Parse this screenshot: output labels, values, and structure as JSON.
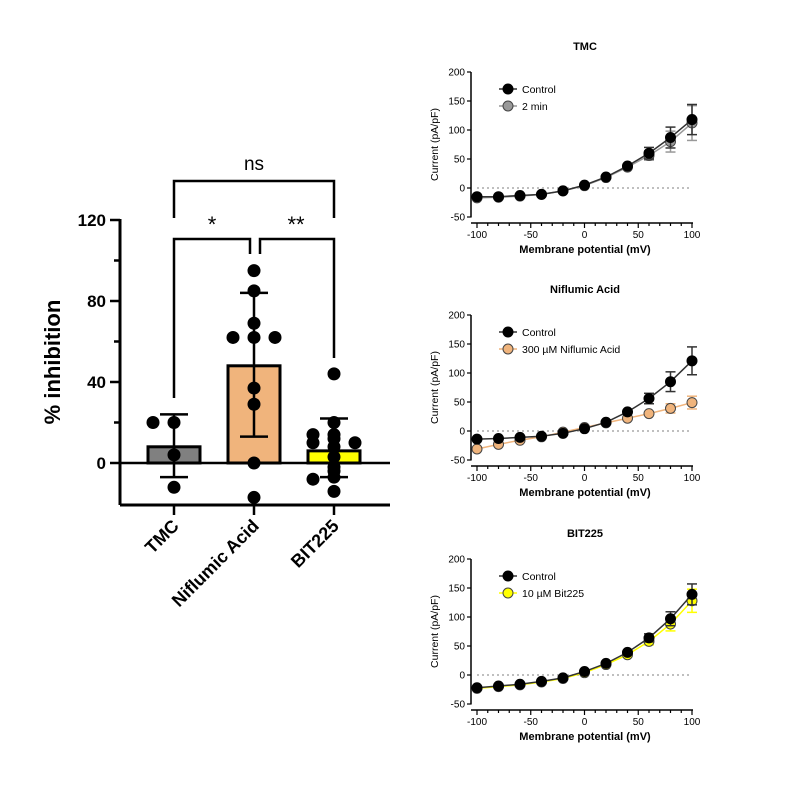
{
  "chart_data": [
    {
      "type": "bar",
      "title": "",
      "ylabel": "% inhibition",
      "xlabel": "",
      "ylim": [
        -20,
        120
      ],
      "yticks": [
        "0",
        "40",
        "80",
        "120"
      ],
      "categories": [
        "TMC",
        "Niflumic Acid",
        "BIT225"
      ],
      "colors": [
        "#808080",
        "#f0b47c",
        "#ffff00"
      ],
      "values": [
        8,
        48,
        6
      ],
      "error": [
        [
          -7,
          24
        ],
        [
          13,
          84
        ],
        [
          -7,
          22
        ]
      ],
      "points": [
        [
          20,
          20,
          4,
          -12
        ],
        [
          95,
          85,
          69,
          62,
          62,
          62,
          37,
          29,
          0,
          -17
        ],
        [
          44,
          20,
          14,
          14,
          12,
          10,
          10,
          8,
          3,
          -2,
          -4,
          -7,
          -8,
          -14
        ]
      ],
      "annotations": [
        {
          "label": "ns",
          "between": [
            "TMC",
            "BIT225"
          ]
        },
        {
          "label": "*",
          "between": [
            "TMC",
            "Niflumic Acid"
          ]
        },
        {
          "label": "**",
          "between": [
            "Niflumic Acid",
            "BIT225"
          ]
        }
      ]
    },
    {
      "type": "line",
      "title": "TMC",
      "xlabel": "Membrane potential (mV)",
      "ylabel": "Current (pA/pF)",
      "xlim": [
        -100,
        100
      ],
      "ylim": [
        -50,
        200
      ],
      "xticks": [
        "-100",
        "-50",
        "0",
        "50",
        "100"
      ],
      "yticks": [
        "-50",
        "0",
        "50",
        "100",
        "150",
        "200"
      ],
      "x": [
        -100,
        -80,
        -60,
        -40,
        -20,
        0,
        20,
        40,
        60,
        80,
        100
      ],
      "series": [
        {
          "name": "2 min",
          "color": "#999999",
          "values": [
            -17,
            -16,
            -14,
            -11,
            -5,
            4,
            18,
            36,
            56,
            80,
            112
          ],
          "err": [
            4,
            3,
            3,
            2,
            2,
            2,
            3,
            4,
            8,
            18,
            30
          ]
        },
        {
          "name": "Control",
          "color": "#000000",
          "values": [
            -15,
            -15,
            -13,
            -11,
            -5,
            5,
            19,
            38,
            60,
            87,
            118
          ],
          "err": [
            4,
            3,
            3,
            2,
            2,
            2,
            3,
            4,
            10,
            18,
            26
          ]
        }
      ]
    },
    {
      "type": "line",
      "title": "Niflumic Acid",
      "xlabel": "Membrane potential (mV)",
      "ylabel": "Current (pA/pF)",
      "xlim": [
        -100,
        100
      ],
      "ylim": [
        -50,
        200
      ],
      "xticks": [
        "-100",
        "-50",
        "0",
        "50",
        "100"
      ],
      "yticks": [
        "-50",
        "0",
        "50",
        "100",
        "150",
        "200"
      ],
      "x": [
        -100,
        -80,
        -60,
        -40,
        -20,
        0,
        20,
        40,
        60,
        80,
        100
      ],
      "series": [
        {
          "name": "300 µM Niflumic Acid",
          "color": "#f0b47c",
          "values": [
            -31,
            -23,
            -16,
            -10,
            -2,
            6,
            14,
            22,
            30,
            39,
            49
          ],
          "err": [
            4,
            3,
            3,
            2,
            2,
            2,
            3,
            4,
            5,
            8,
            11
          ]
        },
        {
          "name": "Control",
          "color": "#000000",
          "values": [
            -14,
            -13,
            -11,
            -9,
            -4,
            4,
            15,
            33,
            56,
            85,
            121
          ],
          "err": [
            4,
            3,
            3,
            2,
            2,
            2,
            3,
            4,
            9,
            17,
            24
          ]
        }
      ]
    },
    {
      "type": "line",
      "title": "BIT225",
      "xlabel": "Membrane potential  (mV)",
      "ylabel": "Current (pA/pF)",
      "xlim": [
        -100,
        100
      ],
      "ylim": [
        -50,
        200
      ],
      "xticks": [
        "-100",
        "-50",
        "0",
        "50",
        "100"
      ],
      "yticks": [
        "-50",
        "0",
        "50",
        "100",
        "150",
        "200"
      ],
      "x": [
        -100,
        -80,
        -60,
        -40,
        -20,
        0,
        20,
        40,
        60,
        80,
        100
      ],
      "series": [
        {
          "name": "10 µM Bit225",
          "color": "#ffff00",
          "values": [
            -23,
            -20,
            -17,
            -12,
            -6,
            4,
            18,
            35,
            58,
            88,
            128
          ],
          "err": [
            3,
            3,
            3,
            2,
            2,
            2,
            3,
            4,
            6,
            12,
            20
          ]
        },
        {
          "name": "Control",
          "color": "#000000",
          "values": [
            -22,
            -19,
            -16,
            -11,
            -5,
            6,
            20,
            39,
            64,
            97,
            139
          ],
          "err": [
            3,
            3,
            3,
            2,
            2,
            2,
            3,
            4,
            7,
            12,
            18
          ]
        }
      ]
    }
  ]
}
